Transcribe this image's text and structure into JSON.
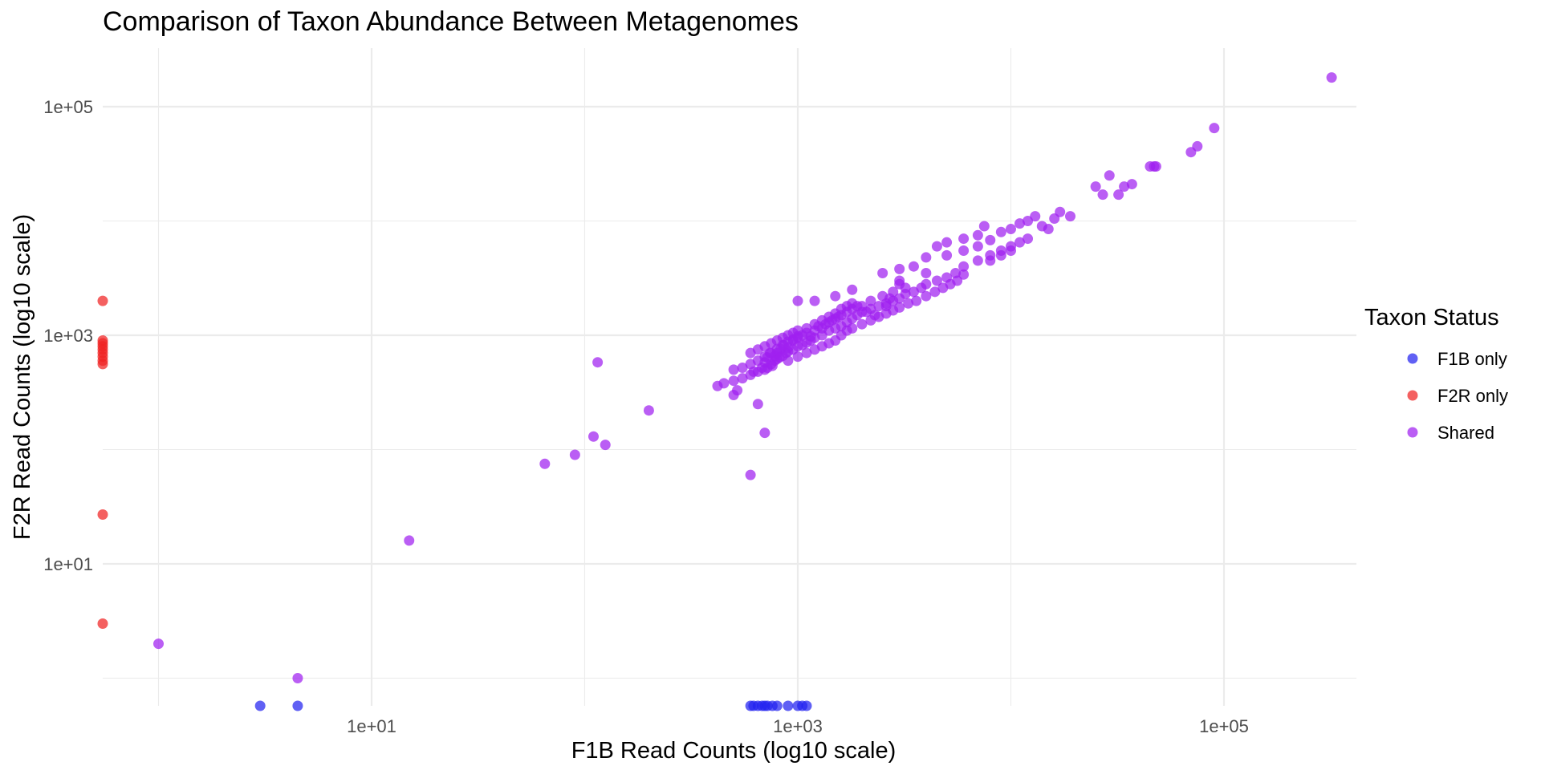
{
  "chart_data": {
    "type": "scatter",
    "title": "Comparison of Taxon Abundance Between Metagenomes",
    "xlabel": "F1B Read Counts (log10 scale)",
    "ylabel": "F2R Read Counts (log10 scale)",
    "x_scale": "log10",
    "y_scale": "log10",
    "xlim": [
      0.42,
      750000
    ],
    "ylim": [
      0.5,
      300000
    ],
    "x_ticks": [
      10,
      1000,
      100000
    ],
    "y_ticks": [
      10,
      1000,
      100000
    ],
    "x_tick_labels": [
      "1e+01",
      "1e+03",
      "1e+05"
    ],
    "y_tick_labels": [
      "1e+01",
      "1e+03",
      "1e+05"
    ],
    "grid": true,
    "legend": {
      "title": "Taxon Status",
      "position": "right"
    },
    "series": [
      {
        "name": "F1B only",
        "color": "#2323f0",
        "points": [
          [
            3,
            0.5
          ],
          [
            4.5,
            0.5
          ],
          [
            600,
            0.5
          ],
          [
            620,
            0.5
          ],
          [
            650,
            0.5
          ],
          [
            680,
            0.5
          ],
          [
            700,
            0.5
          ],
          [
            720,
            0.5
          ],
          [
            760,
            0.5
          ],
          [
            800,
            0.5
          ],
          [
            900,
            0.5
          ],
          [
            1000,
            0.5
          ],
          [
            1050,
            0.5
          ],
          [
            1100,
            0.5
          ]
        ]
      },
      {
        "name": "F2R only",
        "color": "#f02323",
        "points": [
          [
            0.5,
            2000
          ],
          [
            0.5,
            900
          ],
          [
            0.5,
            850
          ],
          [
            0.5,
            800
          ],
          [
            0.5,
            750
          ],
          [
            0.5,
            700
          ],
          [
            0.5,
            650
          ],
          [
            0.5,
            600
          ],
          [
            0.5,
            560
          ],
          [
            0.5,
            27
          ],
          [
            0.5,
            3
          ]
        ]
      },
      {
        "name": "Shared",
        "color": "#a020f0",
        "points": [
          [
            1,
            2
          ],
          [
            4.5,
            1
          ],
          [
            15,
            16
          ],
          [
            65,
            75
          ],
          [
            90,
            90
          ],
          [
            110,
            130
          ],
          [
            115,
            580
          ],
          [
            125,
            110
          ],
          [
            200,
            220
          ],
          [
            500,
            300
          ],
          [
            520,
            330
          ],
          [
            600,
            60
          ],
          [
            650,
            250
          ],
          [
            700,
            140
          ],
          [
            420,
            360
          ],
          [
            450,
            380
          ],
          [
            500,
            400
          ],
          [
            550,
            420
          ],
          [
            600,
            450
          ],
          [
            650,
            480
          ],
          [
            700,
            500
          ],
          [
            720,
            520
          ],
          [
            750,
            560
          ],
          [
            780,
            600
          ],
          [
            800,
            620
          ],
          [
            820,
            640
          ],
          [
            850,
            660
          ],
          [
            880,
            700
          ],
          [
            900,
            720
          ],
          [
            950,
            750
          ],
          [
            1000,
            800
          ],
          [
            1050,
            820
          ],
          [
            1100,
            860
          ],
          [
            1150,
            900
          ],
          [
            1200,
            950
          ],
          [
            1300,
            1000
          ],
          [
            1400,
            1100
          ],
          [
            1500,
            1150
          ],
          [
            1600,
            1200
          ],
          [
            1700,
            1300
          ],
          [
            1800,
            1400
          ],
          [
            1900,
            1500
          ],
          [
            2000,
            1600
          ],
          [
            2200,
            1700
          ],
          [
            2400,
            1800
          ],
          [
            2600,
            1900
          ],
          [
            2800,
            2000
          ],
          [
            3000,
            2100
          ],
          [
            3200,
            2300
          ],
          [
            3500,
            2400
          ],
          [
            3800,
            2600
          ],
          [
            4000,
            2800
          ],
          [
            4500,
            3000
          ],
          [
            5000,
            3200
          ],
          [
            5500,
            3500
          ],
          [
            6000,
            4000
          ],
          [
            7000,
            4500
          ],
          [
            8000,
            5000
          ],
          [
            9000,
            5500
          ],
          [
            10000,
            6000
          ],
          [
            500,
            500
          ],
          [
            550,
            520
          ],
          [
            600,
            560
          ],
          [
            620,
            480
          ],
          [
            650,
            600
          ],
          [
            680,
            520
          ],
          [
            700,
            580
          ],
          [
            720,
            640
          ],
          [
            740,
            700
          ],
          [
            760,
            540
          ],
          [
            780,
            660
          ],
          [
            800,
            700
          ],
          [
            830,
            760
          ],
          [
            860,
            820
          ],
          [
            900,
            780
          ],
          [
            950,
            900
          ],
          [
            1000,
            950
          ],
          [
            1050,
            1000
          ],
          [
            1100,
            1050
          ],
          [
            1150,
            980
          ],
          [
            1200,
            1100
          ],
          [
            1250,
            1200
          ],
          [
            1300,
            1150
          ],
          [
            1350,
            1250
          ],
          [
            1400,
            1300
          ],
          [
            1450,
            1350
          ],
          [
            1500,
            1400
          ],
          [
            1550,
            1450
          ],
          [
            1600,
            1500
          ],
          [
            1700,
            1600
          ],
          [
            1800,
            1700
          ],
          [
            1900,
            1800
          ],
          [
            600,
            700
          ],
          [
            650,
            750
          ],
          [
            700,
            800
          ],
          [
            750,
            850
          ],
          [
            800,
            900
          ],
          [
            850,
            950
          ],
          [
            900,
            1000
          ],
          [
            950,
            1050
          ],
          [
            1000,
            1100
          ],
          [
            700,
            650
          ],
          [
            750,
            700
          ],
          [
            800,
            760
          ],
          [
            850,
            820
          ],
          [
            900,
            880
          ],
          [
            950,
            920
          ],
          [
            1000,
            980
          ],
          [
            1100,
            1150
          ],
          [
            1200,
            1250
          ],
          [
            1300,
            1350
          ],
          [
            1400,
            1450
          ],
          [
            1500,
            1550
          ],
          [
            1600,
            1700
          ],
          [
            1700,
            1800
          ],
          [
            1800,
            1900
          ],
          [
            900,
            600
          ],
          [
            1000,
            650
          ],
          [
            1100,
            700
          ],
          [
            1200,
            750
          ],
          [
            1300,
            800
          ],
          [
            1400,
            850
          ],
          [
            1500,
            900
          ],
          [
            1600,
            1000
          ],
          [
            1700,
            1100
          ],
          [
            1800,
            1150
          ],
          [
            2000,
            1250
          ],
          [
            2200,
            1350
          ],
          [
            2400,
            1450
          ],
          [
            2600,
            1550
          ],
          [
            2800,
            1650
          ],
          [
            3000,
            1750
          ],
          [
            3300,
            1900
          ],
          [
            3600,
            2000
          ],
          [
            4000,
            2200
          ],
          [
            4400,
            2400
          ],
          [
            4800,
            2600
          ],
          [
            5200,
            2800
          ],
          [
            5600,
            3000
          ],
          [
            6000,
            3400
          ],
          [
            1000,
            2000
          ],
          [
            1200,
            2000
          ],
          [
            1500,
            2200
          ],
          [
            1800,
            2500
          ],
          [
            2500,
            3500
          ],
          [
            3000,
            2800
          ],
          [
            3500,
            4000
          ],
          [
            4000,
            3500
          ],
          [
            4500,
            6000
          ],
          [
            5000,
            6500
          ],
          [
            6000,
            7000
          ],
          [
            7000,
            7500
          ],
          [
            7500,
            9000
          ],
          [
            8000,
            6800
          ],
          [
            9000,
            8000
          ],
          [
            10000,
            8500
          ],
          [
            11000,
            9500
          ],
          [
            12000,
            10000
          ],
          [
            13000,
            11000
          ],
          [
            14000,
            9000
          ],
          [
            15000,
            8500
          ],
          [
            16000,
            10500
          ],
          [
            17000,
            12000
          ],
          [
            19000,
            11000
          ],
          [
            3000,
            3000
          ],
          [
            3200,
            2600
          ],
          [
            2800,
            2400
          ],
          [
            2500,
            2200
          ],
          [
            2200,
            2000
          ],
          [
            2000,
            1800
          ],
          [
            2100,
            1600
          ],
          [
            2300,
            1500
          ],
          [
            2600,
            1800
          ],
          [
            2700,
            2100
          ],
          [
            3000,
            3800
          ],
          [
            4000,
            4800
          ],
          [
            5000,
            5000
          ],
          [
            6000,
            5500
          ],
          [
            7000,
            6000
          ],
          [
            8000,
            4500
          ],
          [
            9000,
            5000
          ],
          [
            10000,
            5500
          ],
          [
            11000,
            6500
          ],
          [
            12000,
            7000
          ],
          [
            25000,
            20000
          ],
          [
            27000,
            17000
          ],
          [
            29000,
            25000
          ],
          [
            32000,
            17000
          ],
          [
            34000,
            20000
          ],
          [
            37000,
            21000
          ],
          [
            45000,
            30000
          ],
          [
            47000,
            30000
          ],
          [
            48000,
            30000
          ],
          [
            70000,
            40000
          ],
          [
            75000,
            45000
          ],
          [
            90000,
            65000
          ],
          [
            320000,
            180000
          ]
        ]
      }
    ]
  }
}
